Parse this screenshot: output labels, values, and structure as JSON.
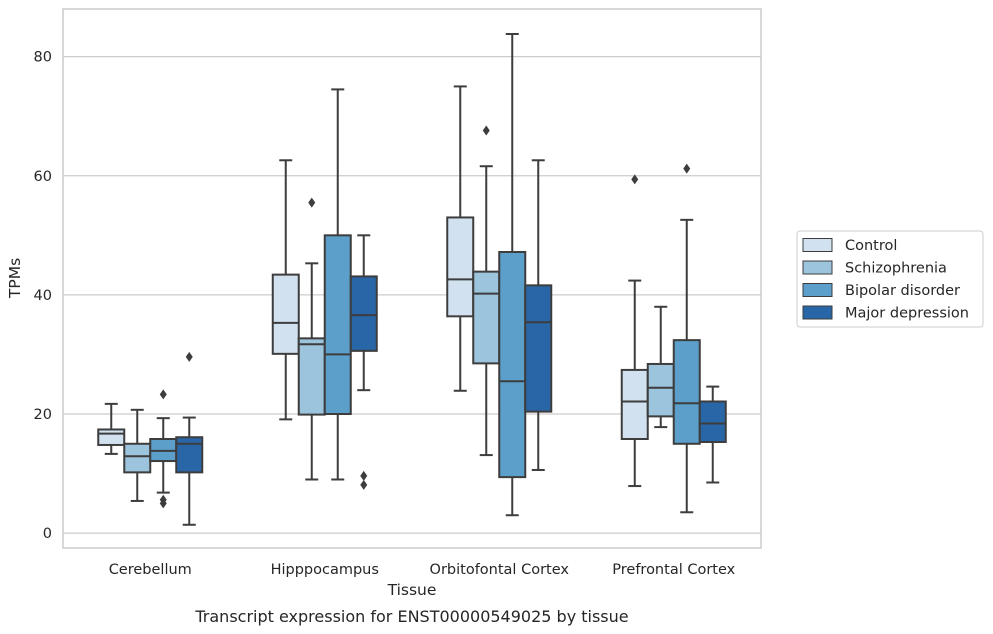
{
  "chart_data": {
    "type": "boxplot",
    "title": "",
    "caption": "Transcript expression for ENST00000549025 by tissue",
    "xlabel": "Tissue",
    "ylabel": "TPMs",
    "ylim": [
      -2.5,
      88
    ],
    "yticks": [
      0,
      20,
      40,
      60,
      80
    ],
    "grid": "horizontal",
    "legend_position": "right-outside",
    "categories": [
      "Cerebellum",
      "Hipppocampus",
      "Orbitofontal Cortex",
      "Prefrontal Cortex"
    ],
    "series": [
      {
        "name": "Control",
        "color": "#d1e1f0",
        "boxes": [
          {
            "whisker_low": 13.3,
            "q1": 14.8,
            "median": 16.7,
            "q3": 17.4,
            "whisker_high": 21.7,
            "outliers": []
          },
          {
            "whisker_low": 19.1,
            "q1": 30.1,
            "median": 35.3,
            "q3": 43.4,
            "whisker_high": 62.6,
            "outliers": []
          },
          {
            "whisker_low": 23.9,
            "q1": 36.4,
            "median": 42.6,
            "q3": 53.0,
            "whisker_high": 75.0,
            "outliers": []
          },
          {
            "whisker_low": 7.9,
            "q1": 15.8,
            "median": 22.1,
            "q3": 27.4,
            "whisker_high": 42.4,
            "outliers": [
              59.4
            ]
          }
        ]
      },
      {
        "name": "Schizophrenia",
        "color": "#9cc4dd",
        "boxes": [
          {
            "whisker_low": 5.4,
            "q1": 10.2,
            "median": 12.9,
            "q3": 15.0,
            "whisker_high": 20.7,
            "outliers": []
          },
          {
            "whisker_low": 9.0,
            "q1": 19.9,
            "median": 31.7,
            "q3": 32.7,
            "whisker_high": 45.3,
            "outliers": [
              55.5
            ]
          },
          {
            "whisker_low": 13.1,
            "q1": 28.5,
            "median": 40.2,
            "q3": 43.9,
            "whisker_high": 61.6,
            "outliers": [
              67.6
            ]
          },
          {
            "whisker_low": 17.8,
            "q1": 19.6,
            "median": 24.4,
            "q3": 28.4,
            "whisker_high": 38.0,
            "outliers": []
          }
        ]
      },
      {
        "name": "Bipolar disorder",
        "color": "#5b9fca",
        "boxes": [
          {
            "whisker_low": 6.8,
            "q1": 12.1,
            "median": 13.8,
            "q3": 15.8,
            "whisker_high": 19.3,
            "outliers": [
              5.0,
              5.6,
              23.3
            ]
          },
          {
            "whisker_low": 9.0,
            "q1": 20.0,
            "median": 30.0,
            "q3": 50.0,
            "whisker_high": 74.5,
            "outliers": []
          },
          {
            "whisker_low": 3.0,
            "q1": 9.4,
            "median": 25.5,
            "q3": 47.2,
            "whisker_high": 83.8,
            "outliers": []
          },
          {
            "whisker_low": 3.5,
            "q1": 15.0,
            "median": 21.8,
            "q3": 32.4,
            "whisker_high": 52.6,
            "outliers": [
              61.2
            ]
          }
        ]
      },
      {
        "name": "Major depression",
        "color": "#2866a8",
        "boxes": [
          {
            "whisker_low": 1.4,
            "q1": 10.2,
            "median": 15.0,
            "q3": 16.1,
            "whisker_high": 19.4,
            "outliers": [
              29.6
            ]
          },
          {
            "whisker_low": 24.0,
            "q1": 30.6,
            "median": 36.6,
            "q3": 43.1,
            "whisker_high": 50.0,
            "outliers": [
              8.1,
              9.6
            ]
          },
          {
            "whisker_low": 10.6,
            "q1": 20.4,
            "median": 35.4,
            "q3": 41.6,
            "whisker_high": 62.6,
            "outliers": []
          },
          {
            "whisker_low": 8.5,
            "q1": 15.3,
            "median": 18.4,
            "q3": 22.1,
            "whisker_high": 24.6,
            "outliers": []
          }
        ]
      }
    ]
  }
}
